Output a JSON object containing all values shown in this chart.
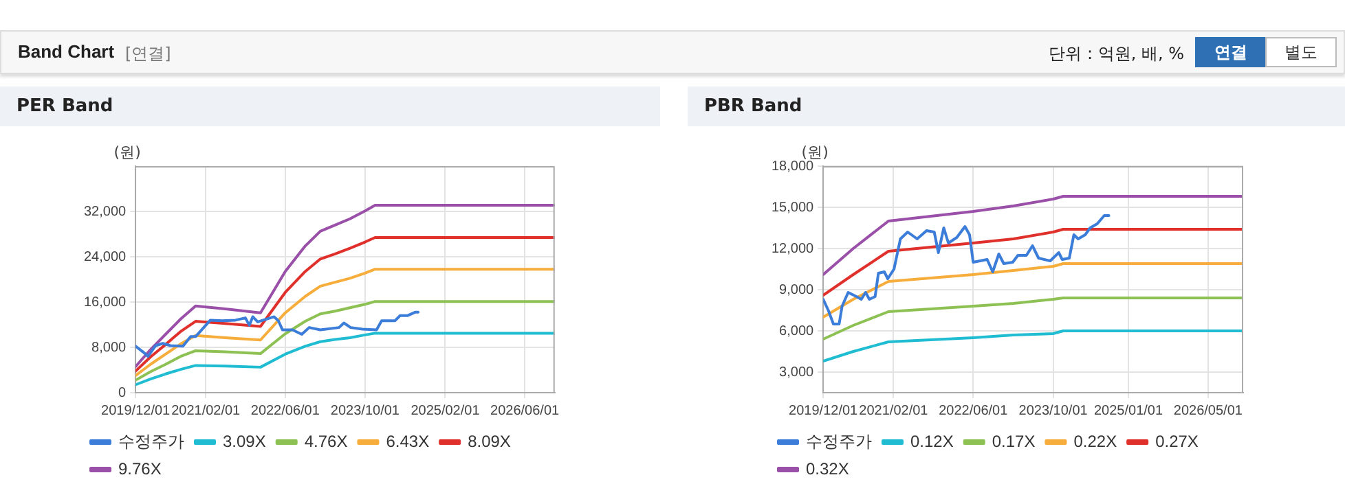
{
  "chart_data": [
    {
      "type": "other",
      "title": "Band Chart",
      "annotations": [
        "[연결]",
        "단위 : 억원, 배, %",
        "연결",
        "별도"
      ]
    },
    {
      "type": "line",
      "title": "PER Band",
      "ylabel": "(원)",
      "grid": true,
      "legend": "bottom",
      "marker": "none",
      "line_style": "solid",
      "xlim": [
        "2019-12-01",
        "2026-12-01"
      ],
      "xticks": [
        {
          "value": "2019-12-01",
          "label": "2019/12/01"
        },
        {
          "value": "2021-02-01",
          "label": "2021/02/01"
        },
        {
          "value": "2022-06-01",
          "label": "2022/06/01"
        },
        {
          "value": "2023-10-01",
          "label": "2023/10/01"
        },
        {
          "value": "2025-02-01",
          "label": "2025/02/01"
        },
        {
          "value": "2026-06-01",
          "label": "2026/06/01"
        }
      ],
      "ylim": [
        0,
        40000
      ],
      "yticks": [
        0,
        {
          "value": 8000,
          "label": "8,000"
        },
        {
          "value": 16000,
          "label": "16,000"
        },
        {
          "value": 24000,
          "label": "24,000"
        },
        {
          "value": 32000,
          "label": "32,000"
        }
      ],
      "series": [
        {
          "name": "수정주가",
          "color": "#3b7dd8",
          "x": [
            "2019-12-01",
            "2020-01-15",
            "2020-02-15",
            "2020-04-01",
            "2020-05-15",
            "2020-07-01",
            "2020-09-15",
            "2020-11-01",
            "2020-12-01",
            "2021-02-01",
            "2021-03-01",
            "2021-05-15",
            "2021-08-01",
            "2021-10-01",
            "2021-10-25",
            "2021-11-15",
            "2021-12-15",
            "2022-03-25",
            "2022-04-20",
            "2022-05-15",
            "2022-07-15",
            "2022-09-10",
            "2022-10-25",
            "2023-01-01",
            "2023-04-25",
            "2023-05-25",
            "2023-07-05",
            "2023-09-15",
            "2023-12-10",
            "2024-01-10",
            "2024-04-01",
            "2024-05-01",
            "2024-06-15",
            "2024-08-01",
            "2024-08-20"
          ],
          "values": [
            8200,
            7200,
            6400,
            8300,
            8700,
            8300,
            8200,
            9900,
            9900,
            11900,
            12800,
            12700,
            12800,
            13200,
            11900,
            13400,
            12500,
            13400,
            12700,
            11100,
            11100,
            10300,
            11500,
            11100,
            11500,
            12300,
            11500,
            11200,
            11100,
            12700,
            12700,
            13600,
            13600,
            14200,
            14200
          ]
        },
        {
          "name": "3.09X",
          "color": "#1fbcd2",
          "x": [
            "2019-12-01",
            "2020-03-01",
            "2020-06-01",
            "2020-09-01",
            "2020-12-01",
            "2021-06-01",
            "2022-01-01",
            "2022-06-01",
            "2022-10-01",
            "2023-01-01",
            "2023-04-01",
            "2023-07-01",
            "2023-10-01",
            "2023-12-01",
            "2026-12-01"
          ],
          "values": [
            1400,
            2400,
            3300,
            4100,
            4800,
            4700,
            4500,
            6800,
            8200,
            9000,
            9400,
            9700,
            10200,
            10500,
            10500
          ]
        },
        {
          "name": "4.76X",
          "color": "#8dc153",
          "x": [
            "2019-12-01",
            "2020-03-01",
            "2020-06-01",
            "2020-09-01",
            "2020-12-01",
            "2021-06-01",
            "2022-01-01",
            "2022-06-01",
            "2022-10-01",
            "2023-01-01",
            "2023-04-01",
            "2023-07-01",
            "2023-10-01",
            "2023-12-01",
            "2026-12-01"
          ],
          "values": [
            2200,
            3700,
            5000,
            6400,
            7400,
            7200,
            6900,
            10400,
            12600,
            13900,
            14400,
            15000,
            15600,
            16100,
            16100
          ]
        },
        {
          "name": "6.43X",
          "color": "#f7ad3b",
          "x": [
            "2019-12-01",
            "2020-03-01",
            "2020-06-01",
            "2020-09-01",
            "2020-12-01",
            "2021-06-01",
            "2022-01-01",
            "2022-06-01",
            "2022-10-01",
            "2023-01-01",
            "2023-04-01",
            "2023-07-01",
            "2023-10-01",
            "2023-12-01",
            "2026-12-01"
          ],
          "values": [
            3000,
            5000,
            6800,
            8600,
            10100,
            9700,
            9300,
            14100,
            17000,
            18800,
            19500,
            20200,
            21100,
            21800,
            21800
          ]
        },
        {
          "name": "8.09X",
          "color": "#e0302b",
          "x": [
            "2019-12-01",
            "2020-03-01",
            "2020-06-01",
            "2020-09-01",
            "2020-12-01",
            "2021-06-01",
            "2022-01-01",
            "2022-06-01",
            "2022-10-01",
            "2023-01-01",
            "2023-04-01",
            "2023-07-01",
            "2023-10-01",
            "2023-12-01",
            "2026-12-01"
          ],
          "values": [
            3800,
            6300,
            8500,
            10800,
            12600,
            12200,
            11700,
            17700,
            21400,
            23600,
            24500,
            25500,
            26600,
            27400,
            27400
          ]
        },
        {
          "name": "9.76X",
          "color": "#9a4fa8",
          "x": [
            "2019-12-01",
            "2020-03-01",
            "2020-06-01",
            "2020-09-01",
            "2020-12-01",
            "2021-06-01",
            "2022-01-01",
            "2022-06-01",
            "2022-10-01",
            "2023-01-01",
            "2023-04-01",
            "2023-07-01",
            "2023-10-01",
            "2023-12-01",
            "2026-12-01"
          ],
          "values": [
            4600,
            7600,
            10300,
            13000,
            15300,
            14800,
            14100,
            21400,
            25900,
            28500,
            29600,
            30700,
            32100,
            33100,
            33100
          ]
        }
      ]
    },
    {
      "type": "line",
      "title": "PBR Band",
      "ylabel": "(원)",
      "grid": true,
      "legend": "bottom",
      "marker": "none",
      "line_style": "solid",
      "xlim": [
        "2019-12-01",
        "2026-12-01"
      ],
      "xticks": [
        {
          "value": "2019-12-01",
          "label": "2019/12/01"
        },
        {
          "value": "2021-02-01",
          "label": "2021/02/01"
        },
        {
          "value": "2022-06-01",
          "label": "2022/06/01"
        },
        {
          "value": "2023-10-01",
          "label": "2023/10/01"
        },
        {
          "value": "2025-01-01",
          "label": "2025/01/01"
        },
        {
          "value": "2026-05-01",
          "label": "2026/05/01"
        }
      ],
      "ylim": [
        1500,
        18000
      ],
      "yticks": [
        {
          "value": 3000,
          "label": "3,000"
        },
        {
          "value": 6000,
          "label": "6,000"
        },
        {
          "value": 9000,
          "label": "9,000"
        },
        {
          "value": 12000,
          "label": "12,000"
        },
        {
          "value": 15000,
          "label": "15,000"
        },
        {
          "value": 18000,
          "label": "18,000"
        }
      ],
      "series": [
        {
          "name": "수정주가",
          "color": "#3b7dd8",
          "x": [
            "2019-12-01",
            "2020-01-01",
            "2020-02-01",
            "2020-03-07",
            "2020-03-25",
            "2020-05-01",
            "2020-06-20",
            "2020-07-20",
            "2020-08-15",
            "2020-09-07",
            "2020-10-12",
            "2020-11-01",
            "2020-12-07",
            "2020-12-28",
            "2021-02-04",
            "2021-03-15",
            "2021-04-28",
            "2021-06-25",
            "2021-08-21",
            "2021-10-07",
            "2021-11-01",
            "2021-12-04",
            "2022-01-01",
            "2022-02-21",
            "2022-04-12",
            "2022-05-10",
            "2022-06-01",
            "2022-08-25",
            "2022-09-28",
            "2022-11-04",
            "2022-12-04",
            "2023-01-28",
            "2023-02-28",
            "2023-04-21",
            "2023-05-28",
            "2023-07-04",
            "2023-09-13",
            "2023-11-04",
            "2023-11-25",
            "2024-01-07",
            "2024-02-04",
            "2024-03-01",
            "2024-04-13",
            "2024-05-13",
            "2024-06-25",
            "2024-08-07",
            "2024-09-04"
          ],
          "values": [
            8300,
            7500,
            6500,
            6500,
            7800,
            8800,
            8500,
            8300,
            8800,
            8300,
            8500,
            10200,
            10300,
            9800,
            10500,
            12700,
            13200,
            12700,
            13300,
            13200,
            11700,
            13500,
            12400,
            12800,
            13600,
            13000,
            11000,
            11200,
            10300,
            11600,
            10900,
            11000,
            11500,
            11500,
            12200,
            11300,
            11100,
            11700,
            11200,
            11300,
            13000,
            12700,
            13000,
            13500,
            13800,
            14400,
            14400
          ]
        },
        {
          "name": "0.12X",
          "color": "#1fbcd2",
          "x": [
            "2019-12-01",
            "2020-06-01",
            "2021-01-01",
            "2022-06-01",
            "2023-02-01",
            "2023-10-01",
            "2023-12-01",
            "2026-12-01"
          ],
          "values": [
            3800,
            4500,
            5200,
            5500,
            5700,
            5800,
            6000,
            6000
          ]
        },
        {
          "name": "0.17X",
          "color": "#8dc153",
          "x": [
            "2019-12-01",
            "2020-06-01",
            "2021-01-01",
            "2022-06-01",
            "2023-02-01",
            "2023-10-01",
            "2023-12-01",
            "2026-12-01"
          ],
          "values": [
            5400,
            6400,
            7400,
            7800,
            8000,
            8300,
            8400,
            8400
          ]
        },
        {
          "name": "0.22X",
          "color": "#f7ad3b",
          "x": [
            "2019-12-01",
            "2020-06-01",
            "2021-01-01",
            "2022-06-01",
            "2023-02-01",
            "2023-10-01",
            "2023-12-01",
            "2026-12-01"
          ],
          "values": [
            7000,
            8300,
            9600,
            10100,
            10400,
            10700,
            10900,
            10900
          ]
        },
        {
          "name": "0.27X",
          "color": "#e0302b",
          "x": [
            "2019-12-01",
            "2020-06-01",
            "2021-01-01",
            "2022-06-01",
            "2023-02-01",
            "2023-10-01",
            "2023-12-01",
            "2026-12-01"
          ],
          "values": [
            8600,
            10100,
            11800,
            12400,
            12700,
            13200,
            13400,
            13400
          ]
        },
        {
          "name": "0.32X",
          "color": "#9a4fa8",
          "x": [
            "2019-12-01",
            "2020-06-01",
            "2021-01-01",
            "2022-06-01",
            "2023-02-01",
            "2023-10-01",
            "2023-12-01",
            "2026-12-01"
          ],
          "values": [
            10100,
            12000,
            14000,
            14700,
            15100,
            15600,
            15800,
            15800
          ]
        }
      ]
    }
  ]
}
